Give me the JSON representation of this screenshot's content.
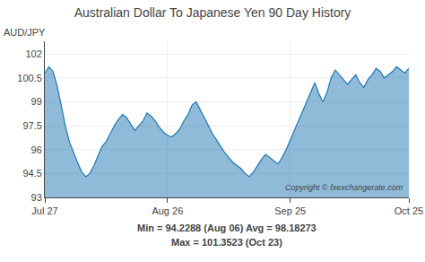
{
  "chart_data": {
    "type": "area",
    "title": "Australian Dollar To Japanese Yen 90 Day History",
    "y_label": "AUD/JPY",
    "x": [
      0,
      1,
      2,
      3,
      4,
      5,
      6,
      7,
      8,
      9,
      10,
      11,
      12,
      13,
      14,
      15,
      16,
      17,
      18,
      19,
      20,
      21,
      22,
      23,
      24,
      25,
      26,
      27,
      28,
      29,
      30,
      31,
      32,
      33,
      34,
      35,
      36,
      37,
      38,
      39,
      40,
      41,
      42,
      43,
      44,
      45,
      46,
      47,
      48,
      49,
      50,
      51,
      52,
      53,
      54,
      55,
      56,
      57,
      58,
      59,
      60,
      61,
      62,
      63,
      64,
      65,
      66,
      67,
      68,
      69,
      70,
      71,
      72,
      73,
      74,
      75,
      76,
      77,
      78,
      79,
      80,
      81,
      82,
      83,
      84,
      85,
      86,
      87,
      88,
      89
    ],
    "values": [
      100.8,
      101.2,
      100.9,
      100.0,
      98.8,
      97.5,
      96.5,
      95.8,
      95.2,
      94.6,
      94.3,
      94.5,
      95.0,
      95.6,
      96.2,
      96.5,
      97.0,
      97.5,
      97.9,
      98.2,
      98.0,
      97.6,
      97.2,
      97.5,
      97.8,
      98.3,
      98.1,
      97.8,
      97.4,
      97.1,
      96.9,
      96.8,
      97.0,
      97.3,
      97.8,
      98.2,
      98.8,
      99.0,
      98.5,
      98.0,
      97.5,
      97.0,
      96.6,
      96.2,
      95.8,
      95.5,
      95.2,
      95.0,
      94.8,
      94.5,
      94.3,
      94.6,
      95.0,
      95.4,
      95.7,
      95.5,
      95.3,
      95.1,
      95.5,
      96.0,
      96.6,
      97.2,
      97.8,
      98.4,
      99.0,
      99.6,
      100.2,
      99.5,
      99.0,
      99.6,
      100.5,
      101.0,
      100.7,
      100.4,
      100.1,
      100.4,
      100.7,
      100.2,
      99.9,
      100.4,
      100.7,
      101.1,
      100.9,
      100.5,
      100.7,
      100.9,
      101.2,
      101.0,
      100.8,
      101.1
    ],
    "xlim": [
      0,
      89
    ],
    "xticks": [
      {
        "value": 0,
        "label": "Jul 27"
      },
      {
        "value": 30,
        "label": "Aug 26"
      },
      {
        "value": 60,
        "label": "Sep 25"
      },
      {
        "value": 89,
        "label": "Oct 25"
      }
    ],
    "ylim": [
      93,
      102.8
    ],
    "yticks": [
      93,
      94.5,
      96,
      97.5,
      99,
      100.5,
      102
    ],
    "grid": true,
    "annotations": [
      "Copyright © fxexchangerate.com",
      "Min = 94.2288 (Aug 06) Avg = 98.18273",
      "Max = 101.3523 (Oct 23)"
    ]
  }
}
